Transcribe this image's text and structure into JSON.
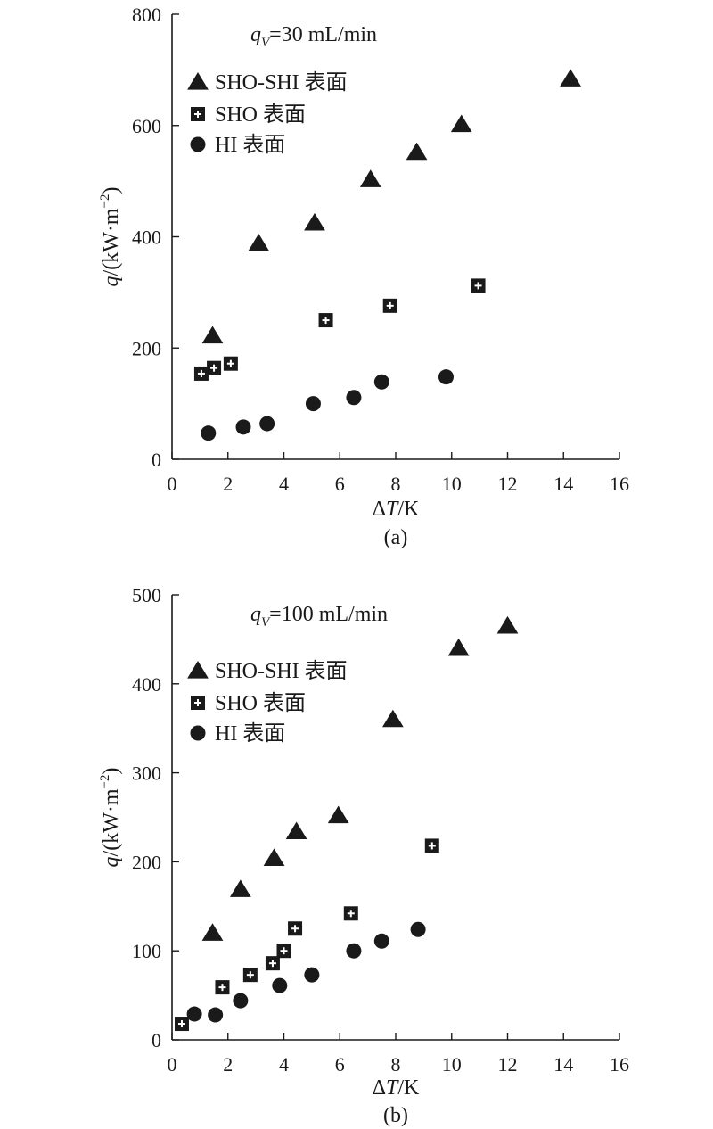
{
  "chart_data": [
    {
      "type": "scatter",
      "panel_label": "(a)",
      "annotation": {
        "prefix": "q",
        "sub": "V",
        "suffix": "=30 mL/min"
      },
      "xlabel": {
        "delta": "Δ",
        "var": "T",
        "unit": "/K"
      },
      "ylabel": {
        "var": "q",
        "unit": "/(kW·m",
        "sup": "−2",
        "close": ")"
      },
      "xlim": [
        0,
        16
      ],
      "ylim": [
        0,
        800
      ],
      "xticks": [
        0,
        2,
        4,
        6,
        8,
        10,
        12,
        14,
        16
      ],
      "yticks": [
        0,
        200,
        400,
        600,
        800
      ],
      "legend_position": "top-left",
      "series": [
        {
          "name": "SHO-SHI 表面",
          "marker": "triangle",
          "points": [
            [
              1.45,
              222
            ],
            [
              3.1,
              388
            ],
            [
              5.1,
              425
            ],
            [
              7.1,
              503
            ],
            [
              8.75,
              552
            ],
            [
              10.35,
              602
            ],
            [
              14.25,
              684
            ]
          ]
        },
        {
          "name": "SHO 表面",
          "marker": "square-cross",
          "points": [
            [
              1.05,
              154
            ],
            [
              1.5,
              164
            ],
            [
              2.1,
              172
            ],
            [
              5.5,
              250
            ],
            [
              7.8,
              276
            ],
            [
              10.95,
              312
            ]
          ]
        },
        {
          "name": "HI 表面",
          "marker": "circle",
          "points": [
            [
              1.3,
              47
            ],
            [
              2.55,
              58
            ],
            [
              3.4,
              64
            ],
            [
              5.05,
              100
            ],
            [
              6.5,
              111
            ],
            [
              7.5,
              139
            ],
            [
              9.8,
              148
            ]
          ]
        }
      ]
    },
    {
      "type": "scatter",
      "panel_label": "(b)",
      "annotation": {
        "prefix": "q",
        "sub": "V",
        "suffix": "=100 mL/min"
      },
      "xlabel": {
        "delta": "Δ",
        "var": "T",
        "unit": "/K"
      },
      "ylabel": {
        "var": "q",
        "unit": "/(kW·m",
        "sup": "−2",
        "close": ")"
      },
      "xlim": [
        0,
        16
      ],
      "ylim": [
        0,
        500
      ],
      "xticks": [
        0,
        2,
        4,
        6,
        8,
        10,
        12,
        14,
        16
      ],
      "yticks": [
        0,
        100,
        200,
        300,
        400,
        500
      ],
      "legend_position": "top-left",
      "series": [
        {
          "name": "SHO-SHI 表面",
          "marker": "triangle",
          "points": [
            [
              1.45,
              120
            ],
            [
              2.45,
              169
            ],
            [
              3.65,
              204
            ],
            [
              4.45,
              234
            ],
            [
              5.95,
              252
            ],
            [
              7.9,
              360
            ],
            [
              10.25,
              440
            ],
            [
              12.0,
              465
            ]
          ]
        },
        {
          "name": "SHO 表面",
          "marker": "square-cross",
          "points": [
            [
              0.35,
              18
            ],
            [
              1.8,
              59
            ],
            [
              2.8,
              73
            ],
            [
              3.6,
              86
            ],
            [
              4.0,
              100
            ],
            [
              4.4,
              125
            ],
            [
              6.4,
              142
            ],
            [
              9.3,
              218
            ]
          ]
        },
        {
          "name": "HI 表面",
          "marker": "circle",
          "points": [
            [
              0.8,
              29
            ],
            [
              1.55,
              28
            ],
            [
              2.45,
              44
            ],
            [
              3.85,
              61
            ],
            [
              5.0,
              73
            ],
            [
              6.5,
              100
            ],
            [
              7.5,
              111
            ],
            [
              8.8,
              124
            ]
          ]
        }
      ]
    }
  ]
}
